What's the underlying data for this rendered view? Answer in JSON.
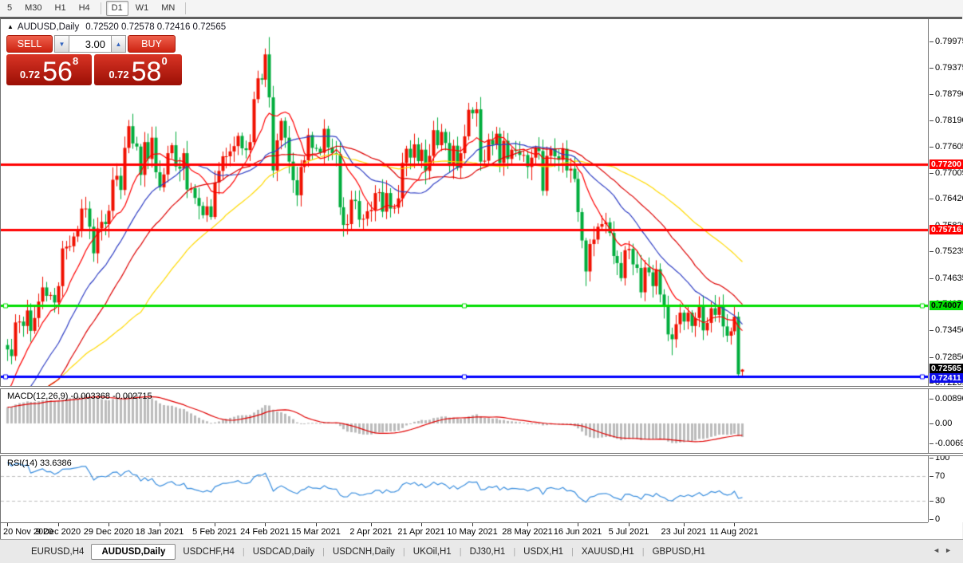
{
  "toolbar": {
    "items": [
      {
        "label": "5"
      },
      {
        "label": "M30"
      },
      {
        "label": "H1"
      },
      {
        "label": "H4"
      },
      {
        "sep": true
      },
      {
        "label": "D1",
        "active": true
      },
      {
        "label": "W1"
      },
      {
        "label": "MN"
      },
      {
        "sep": true
      }
    ]
  },
  "chart": {
    "collapse_arrow": "▲",
    "symbol_title": "AUDUSD,Daily",
    "quote_string": "0.72520 0.72578 0.72416 0.72565"
  },
  "trade_panel": {
    "sell_label": "SELL",
    "buy_label": "BUY",
    "volume": "3.00",
    "spinner_down": "▼",
    "spinner_up": "▲",
    "sell_price": {
      "prefix": "0.72",
      "big": "56",
      "sup": "8"
    },
    "buy_price": {
      "prefix": "0.72",
      "big": "58",
      "sup": "0"
    }
  },
  "price_axis": {
    "ticks": [
      "0.79975",
      "0.79375",
      "0.78790",
      "0.78190",
      "0.77605",
      "0.77005",
      "0.76420",
      "0.75820",
      "0.75235",
      "0.74635",
      "0.74050",
      "0.73450",
      "0.72850",
      "0.72265"
    ]
  },
  "levels": [
    {
      "price": 0.772,
      "label": "0.77200",
      "color": "#ff0000",
      "badge_bg": "#ff0000",
      "badge_fg": "#ffffff",
      "markers": false
    },
    {
      "price": 0.75716,
      "label": "0.75716",
      "color": "#ff0000",
      "badge_bg": "#ff0000",
      "badge_fg": "#ffffff",
      "markers": false
    },
    {
      "price": 0.74007,
      "label": "0.74007",
      "color": "#00dd00",
      "badge_bg": "#00dd00",
      "badge_fg": "#000000",
      "markers": true
    },
    {
      "price": 0.72411,
      "label": "0.72411",
      "color": "#0000ff",
      "badge_bg": "#0d0dea",
      "badge_fg": "#ffffff",
      "markers": true
    }
  ],
  "current_price": {
    "price": 0.72565,
    "label": "0.72565",
    "badge_bg": "#000000",
    "badge_fg": "#ffffff"
  },
  "macd": {
    "label": "MACD(12,26,9) -0.003368 -0.002715",
    "axis_ticks": [
      {
        "label": "0.008903",
        "value": 0.008903
      },
      {
        "label": "0.00",
        "value": 0
      },
      {
        "label": "-0.00697",
        "value": -0.00697
      }
    ]
  },
  "rsi": {
    "label": "RSI(14) 33.6386",
    "axis_ticks": [
      {
        "label": "100",
        "value": 100
      },
      {
        "label": "70",
        "value": 70
      },
      {
        "label": "30",
        "value": 30
      },
      {
        "label": "0",
        "value": 0
      }
    ],
    "levels": [
      70,
      30
    ]
  },
  "time_axis": {
    "labels": [
      {
        "bar": 0,
        "text": "20 Nov 2020"
      },
      {
        "bar": 13,
        "text": "9 Dec 2020"
      },
      {
        "bar": 26,
        "text": "29 Dec 2020"
      },
      {
        "bar": 39,
        "text": "18 Jan 2021"
      },
      {
        "bar": 53,
        "text": "5 Feb 2021"
      },
      {
        "bar": 66,
        "text": "24 Feb 2021"
      },
      {
        "bar": 79,
        "text": "15 Mar 2021"
      },
      {
        "bar": 93,
        "text": "2 Apr 2021"
      },
      {
        "bar": 106,
        "text": "21 Apr 2021"
      },
      {
        "bar": 119,
        "text": "10 May 2021"
      },
      {
        "bar": 133,
        "text": "28 May 2021"
      },
      {
        "bar": 146,
        "text": "16 Jun 2021"
      },
      {
        "bar": 159,
        "text": "5 Jul 2021"
      },
      {
        "bar": 173,
        "text": "23 Jul 2021"
      },
      {
        "bar": 186,
        "text": "11 Aug 2021"
      }
    ]
  },
  "tabs": {
    "items": [
      {
        "label": "EURUSD,H4"
      },
      {
        "label": "AUDUSD,Daily",
        "active": true
      },
      {
        "label": "USDCHF,H4"
      },
      {
        "label": "USDCAD,Daily"
      },
      {
        "label": "USDCNH,Daily"
      },
      {
        "label": "UKOil,H1"
      },
      {
        "label": "DJ30,H1"
      },
      {
        "label": "USDX,H1"
      },
      {
        "label": "XAUUSD,H1"
      },
      {
        "label": "GBPUSD,H1"
      }
    ],
    "nav_left": "◄",
    "nav_right": "►"
  },
  "colors": {
    "candle_up": "#f01000",
    "candle_down": "#00ad3c",
    "macd_hist": "#bbbbbb",
    "macd_signal": "#e00000",
    "rsi_line": "#3a8ede",
    "rsi_level_dash": "#bdbdbd"
  },
  "chart_data": {
    "type": "candlestick",
    "symbol": "AUDUSD",
    "timeframe": "Daily",
    "current_ohlc": {
      "open": 0.7252,
      "high": 0.72578,
      "low": 0.72416,
      "close": 0.72565
    },
    "first_open": 0.7312,
    "warmup_closes": [
      0.7032,
      0.704,
      0.7055,
      0.7048,
      0.707,
      0.7085,
      0.708,
      0.71,
      0.7115,
      0.7108,
      0.713,
      0.7148,
      0.714,
      0.7162,
      0.718,
      0.7196,
      0.721,
      0.7228,
      0.725,
      0.7272
    ],
    "closes": [
      0.7302,
      0.7287,
      0.7363,
      0.7365,
      0.7355,
      0.739,
      0.7344,
      0.7373,
      0.741,
      0.7442,
      0.7423,
      0.7425,
      0.7408,
      0.7445,
      0.753,
      0.7534,
      0.7535,
      0.7557,
      0.7574,
      0.762,
      0.762,
      0.7579,
      0.7519,
      0.7575,
      0.759,
      0.7585,
      0.7615,
      0.7685,
      0.7694,
      0.7662,
      0.7757,
      0.7806,
      0.7767,
      0.776,
      0.7696,
      0.777,
      0.7732,
      0.778,
      0.7702,
      0.7668,
      0.7697,
      0.7745,
      0.7763,
      0.7715,
      0.771,
      0.7745,
      0.7663,
      0.7666,
      0.7644,
      0.7626,
      0.7605,
      0.7625,
      0.7601,
      0.7679,
      0.7705,
      0.7738,
      0.7738,
      0.7749,
      0.7761,
      0.7784,
      0.7756,
      0.7752,
      0.777,
      0.7867,
      0.7914,
      0.7911,
      0.7968,
      0.7871,
      0.7706,
      0.7774,
      0.7818,
      0.778,
      0.7726,
      0.7684,
      0.765,
      0.7714,
      0.7729,
      0.7786,
      0.7757,
      0.7755,
      0.7746,
      0.78,
      0.7758,
      0.7745,
      0.7743,
      0.7623,
      0.7583,
      0.7585,
      0.764,
      0.7637,
      0.7595,
      0.7597,
      0.7614,
      0.7617,
      0.7655,
      0.7657,
      0.7613,
      0.7655,
      0.762,
      0.7622,
      0.7643,
      0.7723,
      0.7755,
      0.7735,
      0.7765,
      0.7727,
      0.7753,
      0.7705,
      0.7739,
      0.7797,
      0.7763,
      0.7793,
      0.7768,
      0.7716,
      0.7762,
      0.7712,
      0.7745,
      0.7783,
      0.7843,
      0.7835,
      0.7844,
      0.7726,
      0.7728,
      0.7775,
      0.7764,
      0.7789,
      0.7723,
      0.7773,
      0.7732,
      0.7753,
      0.775,
      0.7741,
      0.7741,
      0.7714,
      0.7735,
      0.7756,
      0.775,
      0.766,
      0.7739,
      0.7755,
      0.7738,
      0.773,
      0.7755,
      0.7706,
      0.771,
      0.7687,
      0.7612,
      0.7548,
      0.7478,
      0.754,
      0.755,
      0.7579,
      0.7585,
      0.7589,
      0.7565,
      0.7513,
      0.7497,
      0.7463,
      0.7526,
      0.7529,
      0.7494,
      0.7486,
      0.7431,
      0.7487,
      0.7476,
      0.7445,
      0.7483,
      0.7426,
      0.74,
      0.7336,
      0.7325,
      0.7359,
      0.7385,
      0.7365,
      0.7385,
      0.7355,
      0.7373,
      0.7399,
      0.7345,
      0.7362,
      0.7395,
      0.738,
      0.74,
      0.7354,
      0.7333,
      0.7343,
      0.7376,
      0.7246,
      0.72565
    ],
    "wick_overrides": {
      "31": {
        "h": 0.782
      },
      "67": {
        "h": 0.8007
      },
      "148": {
        "l": 0.7445
      },
      "170": {
        "l": 0.7289
      },
      "187": {
        "l": 0.72411
      },
      "188": {
        "o": 0.7252,
        "h": 0.72578,
        "l": 0.72416,
        "c": 0.72565
      }
    },
    "moving_averages": [
      {
        "period": 55,
        "color": "#ffd900"
      },
      {
        "period": 34,
        "color": "#dd0000"
      },
      {
        "period": 22,
        "color": "#2f3ec4"
      },
      {
        "period": 10,
        "color": "#ff0000"
      }
    ],
    "horizontal_levels": [
      0.772,
      0.75716,
      0.74007,
      0.72411
    ],
    "macd": {
      "params": [
        12,
        26,
        9
      ],
      "current_macd": -0.003368,
      "current_signal": -0.002715,
      "axis": [
        0.008903,
        0,
        -0.00697
      ]
    },
    "rsi": {
      "period": 14,
      "current": 33.6386,
      "levels": [
        70,
        30
      ],
      "range": [
        0,
        100
      ]
    }
  }
}
